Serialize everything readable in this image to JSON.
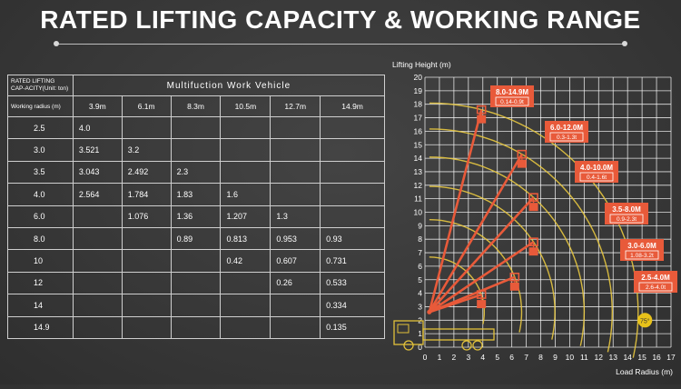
{
  "title": "RATED LIFTING CAPACITY & WORKING RANGE",
  "table": {
    "corner_label": "RATED LIFTING CAP-ACITY(Unit: ton)",
    "vehicle_label": "Multifuction Work Vehicle",
    "radius_label": "Working radius (m)",
    "boom_lengths": [
      "3.9m",
      "6.1m",
      "8.3m",
      "10.5m",
      "12.7m",
      "14.9m"
    ],
    "rows": [
      {
        "radius": "2.5",
        "values": [
          "4.0",
          "",
          "",
          "",
          "",
          ""
        ]
      },
      {
        "radius": "3.0",
        "values": [
          "3.521",
          "3.2",
          "",
          "",
          "",
          ""
        ]
      },
      {
        "radius": "3.5",
        "values": [
          "3.043",
          "2.492",
          "2.3",
          "",
          "",
          ""
        ]
      },
      {
        "radius": "4.0",
        "values": [
          "2.564",
          "1.784",
          "1.83",
          "1.6",
          "",
          ""
        ]
      },
      {
        "radius": "6.0",
        "values": [
          "",
          "1.076",
          "1.36",
          "1.207",
          "1.3",
          ""
        ]
      },
      {
        "radius": "8.0",
        "values": [
          "",
          "",
          "0.89",
          "0.813",
          "0.953",
          "0.93"
        ]
      },
      {
        "radius": "10",
        "values": [
          "",
          "",
          "",
          "0.42",
          "0.607",
          "0.731"
        ]
      },
      {
        "radius": "12",
        "values": [
          "",
          "",
          "",
          "",
          "0.26",
          "0.533"
        ]
      },
      {
        "radius": "14",
        "values": [
          "",
          "",
          "",
          "",
          "",
          "0.334"
        ]
      },
      {
        "radius": "14.9",
        "values": [
          "",
          "",
          "",
          "",
          "",
          "0.135"
        ]
      }
    ]
  },
  "chart_data": {
    "type": "line",
    "xlabel": "Load Radius (m)",
    "ylabel": "Lifting Height (m)",
    "xlim": [
      0,
      17
    ],
    "ylim": [
      0,
      20
    ],
    "grid": true,
    "booms": [
      {
        "reach": "8.0-14.9M",
        "capacity": "0.14-0.9t",
        "tip": [
          3.9,
          17.6
        ]
      },
      {
        "reach": "6.0-12.0M",
        "capacity": "0.3-1.3t",
        "tip": [
          6.7,
          14.3
        ]
      },
      {
        "reach": "4.0-10.0M",
        "capacity": "0.4-1.6t",
        "tip": [
          7.5,
          11.1
        ]
      },
      {
        "reach": "3.5-8.0M",
        "capacity": "0.9-2.3t",
        "tip": [
          7.5,
          7.8
        ]
      },
      {
        "reach": "3.0-6.0M",
        "capacity": "1.08-3.2t",
        "tip": [
          6.2,
          5.2
        ]
      },
      {
        "reach": "2.5-4.0M",
        "capacity": "2.6-4.0t",
        "tip": [
          3.9,
          3.9
        ]
      }
    ],
    "angle_label": "75°",
    "colors": {
      "boom": "#e85a3a",
      "arc": "#e8c840",
      "grid": "#ffffff",
      "label_bg": "#e85a3a"
    }
  }
}
